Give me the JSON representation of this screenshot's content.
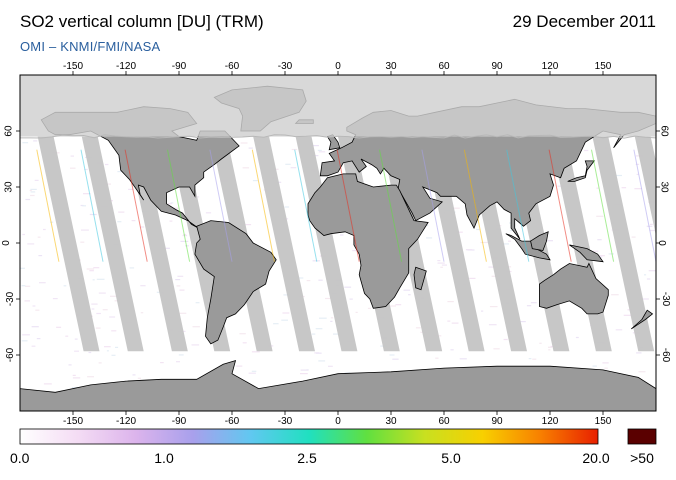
{
  "header": {
    "title": "SO2 vertical column [DU] (TRM)",
    "date": "29 December 2011",
    "subtitle": "OMI  –  KNMI/FMI/NASA"
  },
  "map": {
    "lon_ticks": [
      -150,
      -120,
      -90,
      -60,
      -30,
      0,
      30,
      60,
      90,
      120,
      150
    ],
    "lat_ticks": [
      60,
      30,
      0,
      -30,
      -60
    ],
    "lon_range": [
      -180,
      180
    ],
    "lat_range": [
      -90,
      90
    ],
    "colors": {
      "no_data": "#d0d0d0",
      "land_fill": "#9a9a9a",
      "coast": "#000000",
      "swath_gap": "#c4c4c4",
      "swath_gap_dark": "#9a9a9a"
    }
  },
  "colorbar": {
    "labels": [
      "0.0",
      "1.0",
      "2.5",
      "5.0",
      "20.0"
    ],
    "overflow_label": ">50",
    "stops": [
      "#ffffff",
      "#f4dcf4",
      "#dcb4ec",
      "#a8a0ec",
      "#60c8f0",
      "#20e0c0",
      "#60e040",
      "#c8e020",
      "#f8d000",
      "#f88000",
      "#e82000"
    ],
    "overflow_color": "#5a0000"
  }
}
